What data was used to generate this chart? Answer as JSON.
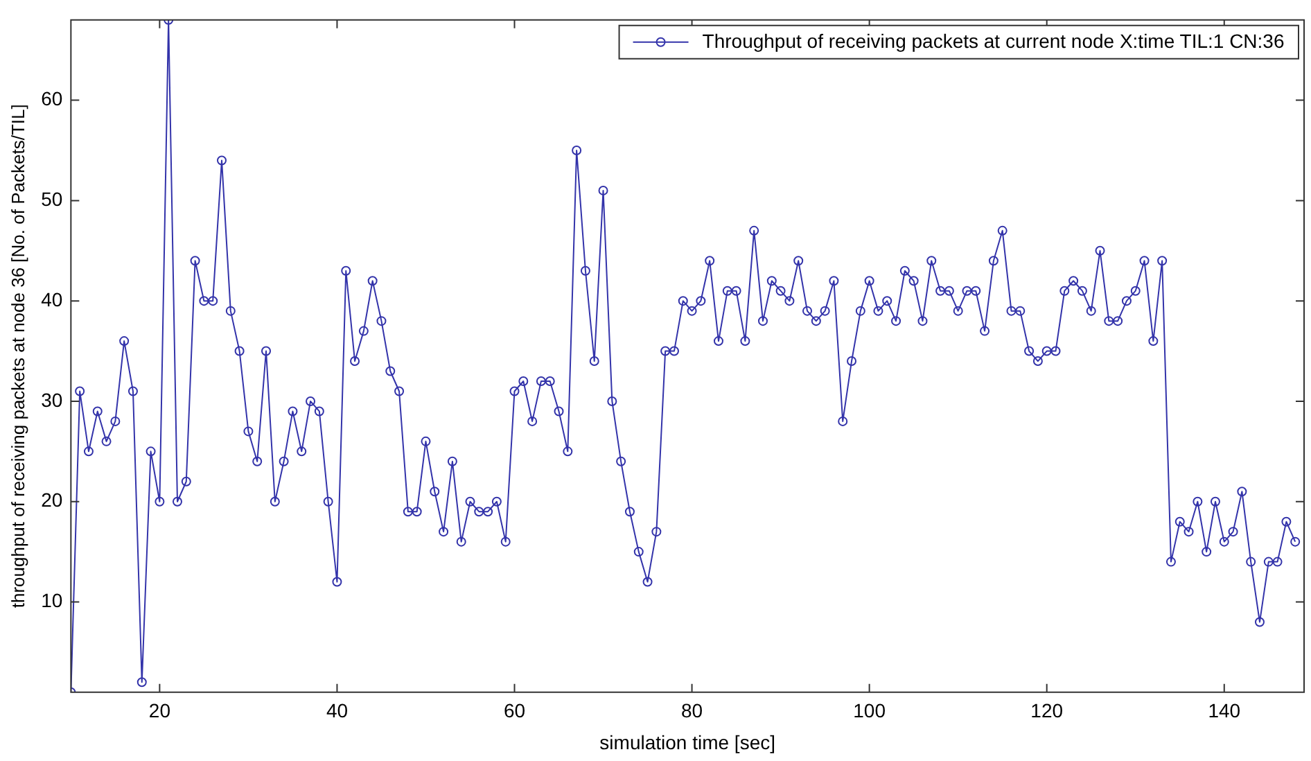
{
  "chart_data": {
    "type": "line",
    "xlabel": "simulation time [sec]",
    "ylabel": "throughput of receiving packets at node 36 [No. of Packets/TIL]",
    "x": [
      10,
      11,
      12,
      13,
      14,
      15,
      16,
      17,
      18,
      19,
      20,
      21,
      22,
      23,
      24,
      25,
      26,
      27,
      28,
      29,
      30,
      31,
      32,
      33,
      34,
      35,
      36,
      37,
      38,
      39,
      40,
      41,
      42,
      43,
      44,
      45,
      46,
      47,
      48,
      49,
      50,
      51,
      52,
      53,
      54,
      55,
      56,
      57,
      58,
      59,
      60,
      61,
      62,
      63,
      64,
      65,
      66,
      67,
      68,
      69,
      70,
      71,
      72,
      73,
      74,
      75,
      76,
      77,
      78,
      79,
      80,
      81,
      82,
      83,
      84,
      85,
      86,
      87,
      88,
      89,
      90,
      91,
      92,
      93,
      94,
      95,
      96,
      97,
      98,
      99,
      100,
      101,
      102,
      103,
      104,
      105,
      106,
      107,
      108,
      109,
      110,
      111,
      112,
      113,
      114,
      115,
      116,
      117,
      118,
      119,
      120,
      121,
      122,
      123,
      124,
      125,
      126,
      127,
      128,
      129,
      130,
      131,
      132,
      133,
      134,
      135,
      136,
      137,
      138,
      139,
      140,
      141,
      142,
      143,
      144,
      145,
      146,
      147,
      148
    ],
    "series": [
      {
        "name": "Throughput of receiving packets at current node X:time TIL:1 CN:36",
        "color": "#3333aa",
        "values": [
          1,
          31,
          25,
          29,
          26,
          28,
          36,
          31,
          2,
          25,
          20,
          68,
          20,
          22,
          44,
          40,
          40,
          54,
          39,
          35,
          27,
          24,
          35,
          20,
          24,
          29,
          25,
          30,
          29,
          20,
          12,
          43,
          34,
          37,
          42,
          38,
          33,
          31,
          19,
          19,
          26,
          21,
          17,
          24,
          16,
          20,
          19,
          19,
          20,
          16,
          31,
          32,
          28,
          32,
          32,
          29,
          25,
          55,
          43,
          34,
          51,
          30,
          24,
          19,
          15,
          12,
          17,
          35,
          35,
          40,
          39,
          40,
          44,
          36,
          41,
          41,
          36,
          47,
          38,
          42,
          41,
          40,
          44,
          39,
          38,
          39,
          42,
          28,
          34,
          39,
          42,
          39,
          40,
          38,
          43,
          42,
          38,
          44,
          41,
          41,
          39,
          41,
          41,
          37,
          44,
          47,
          39,
          39,
          35,
          34,
          35,
          35,
          41,
          42,
          41,
          39,
          45,
          38,
          38,
          40,
          41,
          44,
          36,
          44,
          14,
          18,
          17,
          20,
          15,
          20,
          16,
          17,
          21,
          14,
          8,
          14,
          14,
          18,
          16
        ]
      }
    ],
    "xlim": [
      10,
      149
    ],
    "ylim": [
      1,
      68
    ],
    "xticks": [
      20,
      40,
      60,
      80,
      100,
      120,
      140
    ],
    "yticks": [
      10,
      20,
      30,
      40,
      50,
      60
    ],
    "grid": false,
    "legend": "top right",
    "marker": "circle",
    "line_style": "solid"
  }
}
